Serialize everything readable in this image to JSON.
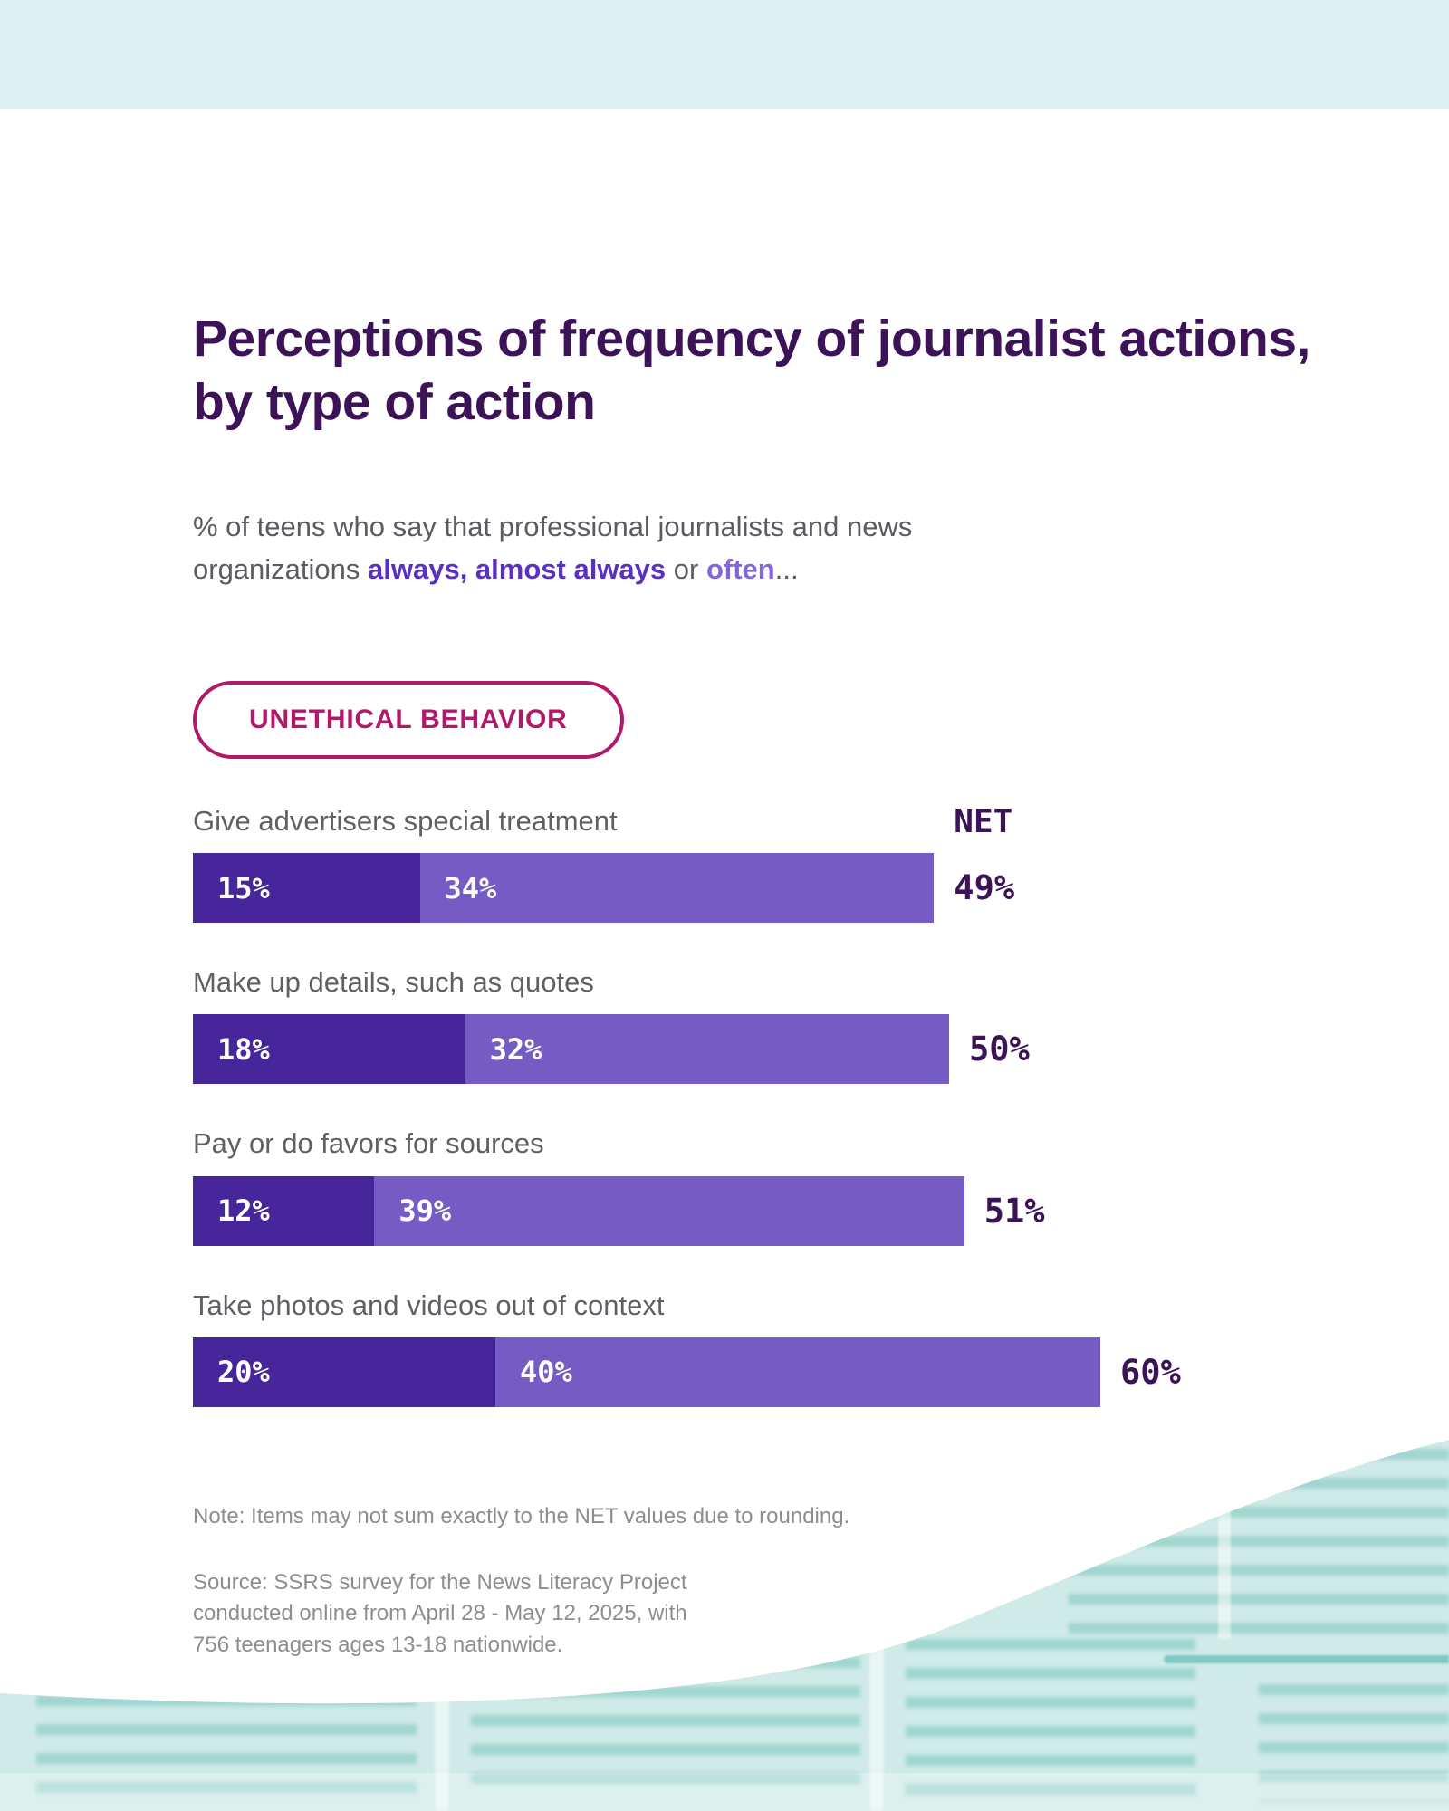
{
  "header": {
    "title": "Perceptions of frequency of journalist actions, by type of action"
  },
  "subtitle": {
    "prefix": "% of teens who say that professional journalists and news organizations ",
    "highlight_primary": "always, almost always",
    "connector": " or ",
    "highlight_secondary": "often",
    "suffix": "..."
  },
  "category": {
    "label": "UNETHICAL BEHAVIOR"
  },
  "chart_data": {
    "type": "bar",
    "orientation": "horizontal",
    "stacked": true,
    "categories": [
      "Give advertisers special treatment",
      "Make up details, such as quotes",
      "Pay or do favors for sources",
      "Take photos and videos out of context"
    ],
    "series": [
      {
        "name": "always, almost always",
        "color": "#47269b",
        "values": [
          15,
          18,
          12,
          20
        ]
      },
      {
        "name": "often",
        "color": "#755cc5",
        "values": [
          34,
          32,
          39,
          40
        ]
      }
    ],
    "net_header": "NET",
    "net_values": [
      49,
      50,
      51,
      60
    ],
    "value_suffix": "%",
    "xlim": [
      0,
      100
    ],
    "grid": false,
    "legend_position": "in-subtitle"
  },
  "footer": {
    "note": "Note: Items may not sum exactly to the NET values due to rounding.",
    "source": "Source: SSRS survey for the News Literacy Project conducted online from April 28 - May 12, 2025, with 756 teenagers ages 13-18 nationwide."
  },
  "colors": {
    "series_dark_purple": "#47269b",
    "series_light_purple": "#755cc5",
    "title_purple": "#3c1356",
    "net_text_purple": "#3c1356",
    "pill_magenta": "#b01b69",
    "subtitle_highlight_primary": "#5a2fc4",
    "subtitle_highlight_secondary": "#8466d9",
    "top_band_teal": "#dcf0f0",
    "footer_texture_teal": "#cfeae7",
    "body_text_gray": "#595c60",
    "footnote_gray": "#8b8e90"
  }
}
